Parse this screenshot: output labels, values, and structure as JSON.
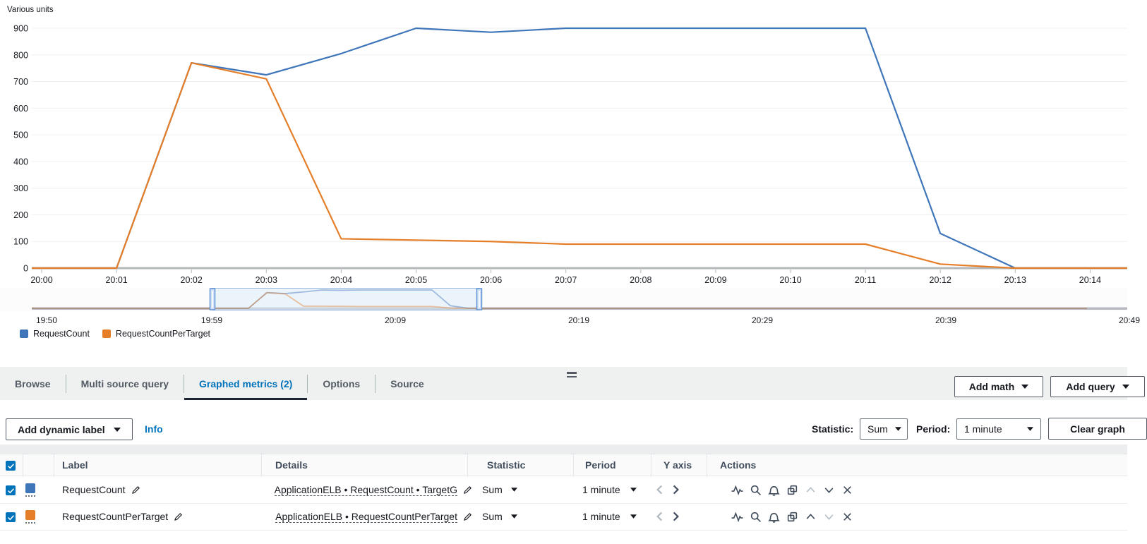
{
  "chart": {
    "units_label": "Various units",
    "y_ticks": [
      "0",
      "100",
      "200",
      "300",
      "400",
      "500",
      "600",
      "700",
      "800",
      "900"
    ],
    "axis_color": "#b5b8ba",
    "grid_color": "#f0f0f0"
  },
  "chart_data": {
    "type": "line",
    "title": "Various units",
    "x": [
      "20:00",
      "20:01",
      "20:02",
      "20:03",
      "20:04",
      "20:05",
      "20:06",
      "20:07",
      "20:08",
      "20:09",
      "20:10",
      "20:11",
      "20:12",
      "20:13",
      "20:14"
    ],
    "series": [
      {
        "name": "RequestCount",
        "color": "#3f76ba",
        "values": [
          0,
          0,
          770,
          725,
          805,
          900,
          885,
          900,
          900,
          900,
          900,
          900,
          130,
          0,
          0
        ]
      },
      {
        "name": "RequestCountPerTarget",
        "color": "#e57e28",
        "values": [
          0,
          0,
          770,
          710,
          110,
          105,
          100,
          90,
          90,
          90,
          90,
          90,
          15,
          0,
          0
        ]
      }
    ],
    "ylim": [
      0,
      900
    ],
    "y_tick_step": 100,
    "grid": "horizontal",
    "legend_position": "bottom-left"
  },
  "brush": {
    "ticks": [
      "19:50",
      "19:59",
      "20:09",
      "20:19",
      "20:29",
      "20:39",
      "20:49"
    ],
    "selection": {
      "start": "19:59",
      "end": "20:14"
    }
  },
  "legend": {
    "items": [
      {
        "label": "RequestCount",
        "color": "#3f76ba"
      },
      {
        "label": "RequestCountPerTarget",
        "color": "#e57e28"
      }
    ]
  },
  "tabs": {
    "items": [
      {
        "label": "Browse",
        "active": false
      },
      {
        "label": "Multi source query",
        "active": false
      },
      {
        "label": "Graphed metrics (2)",
        "active": true
      },
      {
        "label": "Options",
        "active": false
      },
      {
        "label": "Source",
        "active": false
      }
    ],
    "add_math_label": "Add math",
    "add_query_label": "Add query",
    "active_color": "#0073bb"
  },
  "toolbar": {
    "add_dynamic_label": "Add dynamic label",
    "info_label": "Info",
    "statistic_label": "Statistic:",
    "statistic_value": "Sum",
    "period_label": "Period:",
    "period_value": "1 minute",
    "clear_graph_label": "Clear graph"
  },
  "table": {
    "headers": [
      "Label",
      "Details",
      "Statistic",
      "Period",
      "Y axis",
      "Actions"
    ],
    "header_checkbox_checked": true,
    "actions_icons": [
      "activity",
      "zoom",
      "alarm",
      "duplicate",
      "move-up",
      "move-down",
      "remove"
    ],
    "rows": [
      {
        "checked": true,
        "color": "#3f76ba",
        "label": "RequestCount",
        "details": "ApplicationELB • RequestCount • TargetG",
        "statistic": "Sum",
        "period": "1 minute",
        "move_up_enabled": false,
        "move_down_enabled": true
      },
      {
        "checked": true,
        "color": "#e57e28",
        "label": "RequestCountPerTarget",
        "details": "ApplicationELB • RequestCountPerTarget",
        "statistic": "Sum",
        "period": "1 minute",
        "move_up_enabled": true,
        "move_down_enabled": false
      }
    ]
  }
}
